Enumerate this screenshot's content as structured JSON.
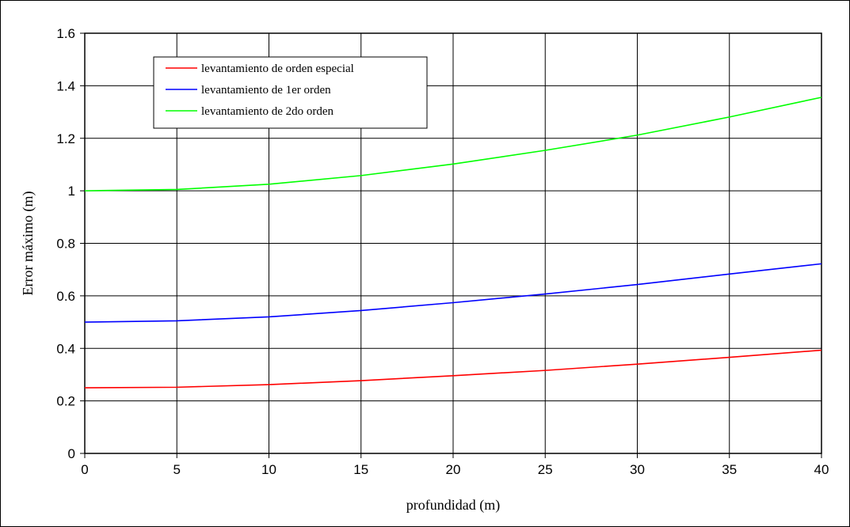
{
  "chart_data": {
    "type": "line",
    "xlabel": "profundidad (m)",
    "ylabel": "Error máximo  (m)",
    "xlim": [
      0,
      40
    ],
    "ylim": [
      0,
      1.6
    ],
    "x_ticks": [
      "0",
      "5",
      "10",
      "15",
      "20",
      "25",
      "30",
      "35",
      "40"
    ],
    "y_ticks": [
      "0",
      "0.2",
      "0.4",
      "0.6",
      "0.8",
      "1",
      "1.2",
      "1.4",
      "1.6"
    ],
    "grid": true,
    "legend_position": "top-left",
    "x": [
      0,
      5,
      10,
      15,
      20,
      25,
      30,
      35,
      40
    ],
    "series": [
      {
        "name": "levantamiento de orden especial",
        "color": "#ff0000",
        "values": [
          0.25,
          0.252,
          0.262,
          0.277,
          0.296,
          0.316,
          0.34,
          0.366,
          0.393
        ]
      },
      {
        "name": "levantamiento de 1er orden",
        "color": "#0000ff",
        "values": [
          0.5,
          0.505,
          0.52,
          0.544,
          0.574,
          0.607,
          0.643,
          0.683,
          0.722
        ]
      },
      {
        "name": "levantamiento de 2do orden",
        "color": "#00ff00",
        "values": [
          1.0,
          1.005,
          1.025,
          1.058,
          1.102,
          1.154,
          1.212,
          1.281,
          1.356
        ]
      }
    ]
  }
}
